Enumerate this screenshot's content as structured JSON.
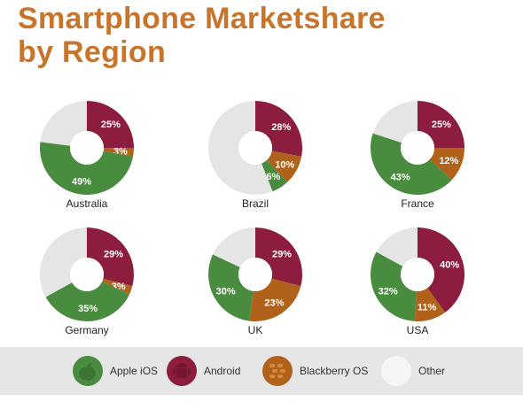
{
  "title_line1": "Smartphone Marketshare",
  "title_line2": "by Region",
  "colors": {
    "title": "#c8742a",
    "apple_ios": "#4a8c3f",
    "android": "#8c1d3e",
    "blackberry_os": "#b0621a",
    "other": "#e5e5e5"
  },
  "legend": [
    {
      "key": "apple_ios",
      "label": "Apple iOS",
      "icon": "apple-icon"
    },
    {
      "key": "android",
      "label": "Android",
      "icon": "android-icon"
    },
    {
      "key": "blackberry_os",
      "label": "Blackberry OS",
      "icon": "blackberry-icon"
    },
    {
      "key": "other",
      "label": "Other",
      "icon": ""
    }
  ],
  "chart_data": [
    {
      "type": "pie",
      "region": "Australia",
      "series": [
        {
          "name": "Android",
          "value": 25,
          "label": "25%"
        },
        {
          "name": "Blackberry OS",
          "value": 3,
          "label": "3%"
        },
        {
          "name": "Apple iOS",
          "value": 49,
          "label": "49%"
        },
        {
          "name": "Other",
          "value": 23,
          "label": ""
        }
      ]
    },
    {
      "type": "pie",
      "region": "Brazil",
      "series": [
        {
          "name": "Android",
          "value": 28,
          "label": "28%"
        },
        {
          "name": "Blackberry OS",
          "value": 10,
          "label": "10%"
        },
        {
          "name": "Apple iOS",
          "value": 6,
          "label": "6%"
        },
        {
          "name": "Other",
          "value": 56,
          "label": ""
        }
      ]
    },
    {
      "type": "pie",
      "region": "France",
      "series": [
        {
          "name": "Android",
          "value": 25,
          "label": "25%"
        },
        {
          "name": "Blackberry OS",
          "value": 12,
          "label": "12%"
        },
        {
          "name": "Apple iOS",
          "value": 43,
          "label": "43%"
        },
        {
          "name": "Other",
          "value": 20,
          "label": ""
        }
      ]
    },
    {
      "type": "pie",
      "region": "Germany",
      "series": [
        {
          "name": "Android",
          "value": 29,
          "label": "29%"
        },
        {
          "name": "Blackberry OS",
          "value": 3,
          "label": "3%"
        },
        {
          "name": "Apple iOS",
          "value": 35,
          "label": "35%"
        },
        {
          "name": "Other",
          "value": 33,
          "label": ""
        }
      ]
    },
    {
      "type": "pie",
      "region": "UK",
      "series": [
        {
          "name": "Android",
          "value": 29,
          "label": "29%"
        },
        {
          "name": "Blackberry OS",
          "value": 23,
          "label": "23%"
        },
        {
          "name": "Apple iOS",
          "value": 30,
          "label": "30%"
        },
        {
          "name": "Other",
          "value": 18,
          "label": ""
        }
      ]
    },
    {
      "type": "pie",
      "region": "USA",
      "series": [
        {
          "name": "Android",
          "value": 40,
          "label": "40%"
        },
        {
          "name": "Blackberry OS",
          "value": 11,
          "label": "11%"
        },
        {
          "name": "Apple iOS",
          "value": 32,
          "label": "32%"
        },
        {
          "name": "Other",
          "value": 17,
          "label": ""
        }
      ]
    }
  ]
}
